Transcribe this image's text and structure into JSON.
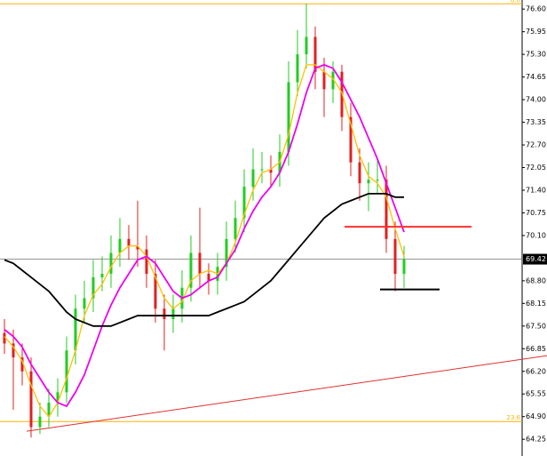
{
  "chart_data": {
    "type": "candlestick",
    "up_color": "#22cc22",
    "down_color": "#e02020",
    "open": [
      67.3,
      67.0,
      66.6,
      66.2,
      64.6,
      64.9,
      65.3,
      65.6,
      66.8,
      68.0,
      68.3,
      68.9,
      69.0,
      69.6,
      70.0,
      69.8,
      69.7,
      69.0,
      68.0,
      67.7,
      68.0,
      68.6,
      69.6,
      69.0,
      68.8,
      69.2,
      70.0,
      70.6,
      71.5,
      72.0,
      72.0,
      71.9,
      72.5,
      74.5,
      75.3,
      75.8,
      74.8,
      74.3,
      74.8,
      73.5,
      72.2,
      71.6,
      71.7,
      71.7,
      70.0,
      69.0
    ],
    "high": [
      67.7,
      67.4,
      67.0,
      66.6,
      65.3,
      65.7,
      66.0,
      67.2,
      68.4,
      68.8,
      69.4,
      69.5,
      70.1,
      70.6,
      70.4,
      71.1,
      70.1,
      69.4,
      68.4,
      68.4,
      69.1,
      70.1,
      70.9,
      69.3,
      69.6,
      70.5,
      71.1,
      72.0,
      72.6,
      72.5,
      72.4,
      73.0,
      75.1,
      76.0,
      76.75,
      76.1,
      75.2,
      75.1,
      75.0,
      73.9,
      72.6,
      72.2,
      72.3,
      72.1,
      70.5,
      69.8
    ],
    "low": [
      66.7,
      65.1,
      65.8,
      64.3,
      64.4,
      64.6,
      64.9,
      65.3,
      66.4,
      67.6,
      67.9,
      68.5,
      68.6,
      69.2,
      69.4,
      69.2,
      68.6,
      67.6,
      66.8,
      67.3,
      67.6,
      68.2,
      68.6,
      68.4,
      68.4,
      68.8,
      69.6,
      70.2,
      71.1,
      71.6,
      71.5,
      71.5,
      72.1,
      74.1,
      74.9,
      74.3,
      73.5,
      73.9,
      73.1,
      71.8,
      71.1,
      70.8,
      71.3,
      69.6,
      68.5,
      68.6
    ],
    "close": [
      67.0,
      66.6,
      66.2,
      64.6,
      64.9,
      65.3,
      65.6,
      66.8,
      68.0,
      68.3,
      68.9,
      69.0,
      69.6,
      70.0,
      69.8,
      69.7,
      69.0,
      68.0,
      67.7,
      68.0,
      68.6,
      69.6,
      69.0,
      68.8,
      69.2,
      70.0,
      70.6,
      71.5,
      72.0,
      72.0,
      71.9,
      72.5,
      74.5,
      75.3,
      75.8,
      74.8,
      74.3,
      74.8,
      73.5,
      72.2,
      71.6,
      71.7,
      71.7,
      70.0,
      69.0,
      69.42
    ],
    "series": [
      {
        "color": "#ffc000",
        "values": [
          67.2,
          66.9,
          66.5,
          65.8,
          65.2,
          64.9,
          65.3,
          66.0,
          66.8,
          67.8,
          68.4,
          68.7,
          69.2,
          69.6,
          69.8,
          69.8,
          69.5,
          68.9,
          68.3,
          68.0,
          68.2,
          68.8,
          69.0,
          69.1,
          69.0,
          69.3,
          69.9,
          70.7,
          71.4,
          71.9,
          72.0,
          72.2,
          73.0,
          74.2,
          75.0,
          75.0,
          74.8,
          74.6,
          74.2,
          73.3,
          72.4,
          71.8,
          71.6,
          71.2,
          70.3,
          69.5
        ]
      },
      {
        "color": "#ee00ee",
        "values": [
          67.4,
          67.2,
          66.9,
          66.4,
          66.0,
          65.6,
          65.3,
          65.2,
          65.6,
          66.1,
          66.8,
          67.5,
          68.1,
          68.6,
          69.0,
          69.4,
          69.5,
          69.3,
          68.9,
          68.5,
          68.3,
          68.4,
          68.6,
          68.8,
          68.9,
          69.3,
          69.7,
          70.3,
          70.8,
          71.2,
          71.5,
          71.9,
          72.5,
          73.3,
          74.2,
          74.9,
          75.0,
          74.9,
          74.5,
          74.0,
          73.5,
          72.9,
          72.3,
          71.6,
          70.9,
          70.2
        ]
      },
      {
        "color": "#000000",
        "values": [
          69.4,
          69.3,
          69.1,
          68.9,
          68.7,
          68.5,
          68.2,
          67.9,
          67.7,
          67.6,
          67.5,
          67.5,
          67.5,
          67.6,
          67.7,
          67.8,
          67.8,
          67.8,
          67.8,
          67.8,
          67.8,
          67.8,
          67.8,
          67.8,
          67.9,
          68.0,
          68.1,
          68.2,
          68.4,
          68.6,
          68.8,
          69.1,
          69.4,
          69.7,
          70.0,
          70.3,
          70.6,
          70.8,
          71.0,
          71.1,
          71.2,
          71.3,
          71.3,
          71.3,
          71.2,
          71.2
        ]
      }
    ],
    "last_price": 69.42,
    "fib_levels": [
      {
        "label": "0.0",
        "value": 76.75
      },
      {
        "label": "23.6",
        "value": 64.76
      }
    ],
    "fib_color": "#ffb000",
    "levels": [
      {
        "value": 70.35,
        "color": "#ff3030"
      },
      {
        "value": 68.55,
        "color": "#000000"
      }
    ],
    "trendline": {
      "values": [
        64.48,
        66.65
      ],
      "color": "#e03030"
    },
    "ylim": [
      63.77,
      76.86
    ],
    "yticks": [
      {
        "value": 76.6,
        "label": "76.60"
      },
      {
        "value": 75.95,
        "label": "75.95"
      },
      {
        "value": 75.3,
        "label": "75.30"
      },
      {
        "value": 74.65,
        "label": "74.65"
      },
      {
        "value": 74.0,
        "label": "74.00"
      },
      {
        "value": 73.35,
        "label": "73.35"
      },
      {
        "value": 72.7,
        "label": "72.70"
      },
      {
        "value": 72.05,
        "label": "72.05"
      },
      {
        "value": 71.4,
        "label": "71.40"
      },
      {
        "value": 70.75,
        "label": "70.75"
      },
      {
        "value": 70.1,
        "label": "70.10"
      },
      {
        "value": 68.8,
        "label": "68.80"
      },
      {
        "value": 68.15,
        "label": "68.15"
      },
      {
        "value": 67.5,
        "label": "67.50"
      },
      {
        "value": 66.85,
        "label": "66.85"
      },
      {
        "value": 66.2,
        "label": "66.20"
      },
      {
        "value": 65.55,
        "label": "65.55"
      },
      {
        "value": 64.9,
        "label": "64.90"
      },
      {
        "value": 64.25,
        "label": "64.25"
      }
    ]
  }
}
